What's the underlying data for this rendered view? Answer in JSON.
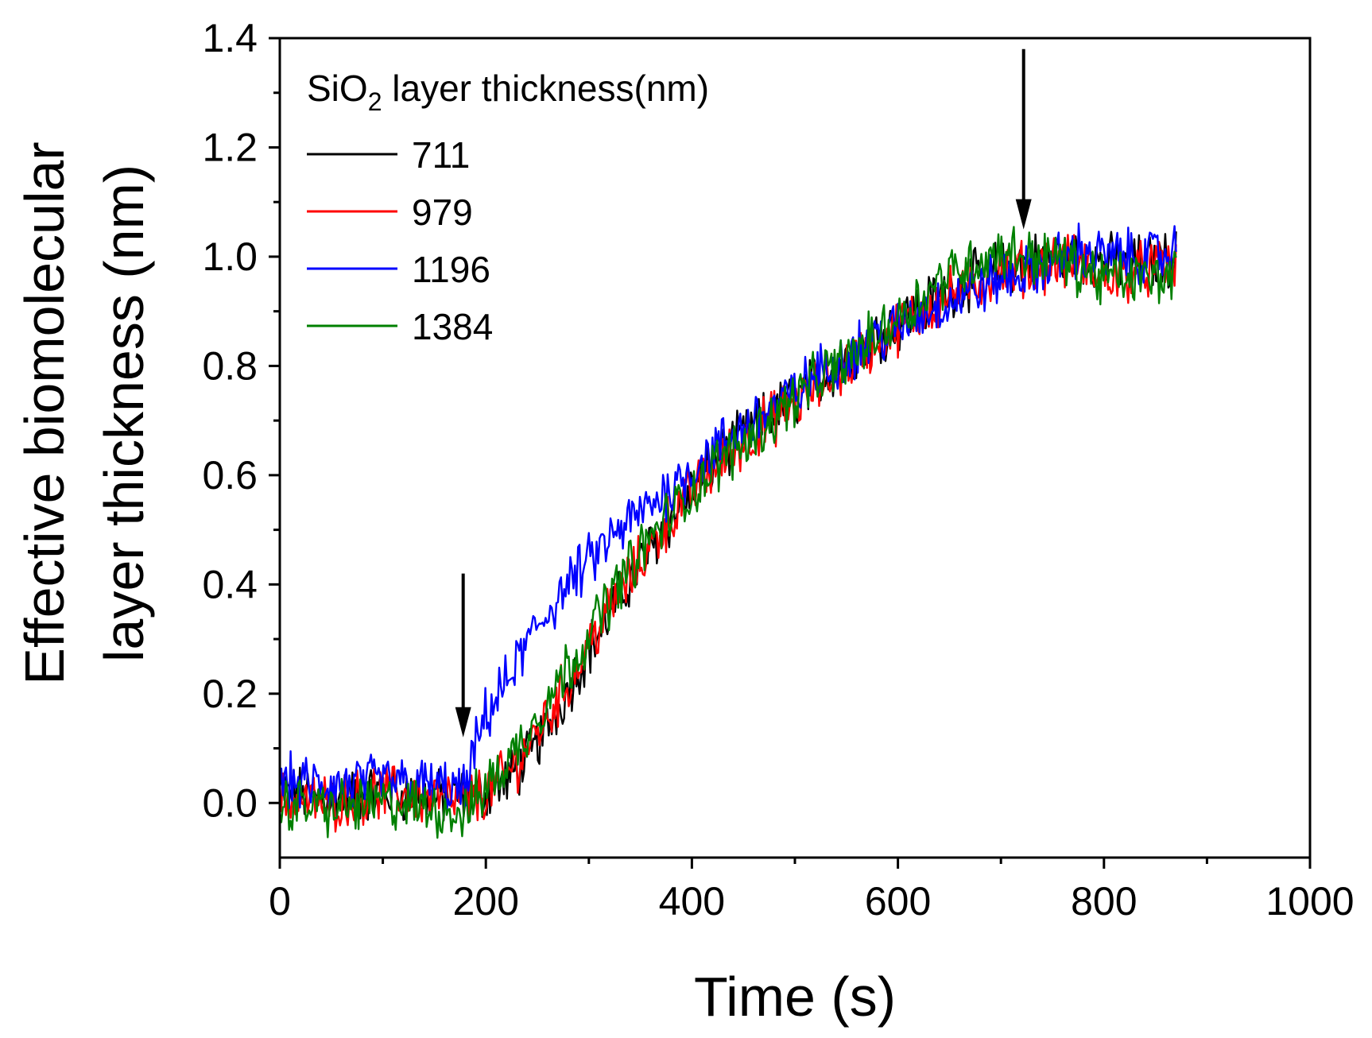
{
  "chart_data": {
    "type": "line",
    "title": "",
    "xlabel": "Time (s)",
    "ylabel_lines": [
      "Effective biomolecular",
      "layer thickness (nm)"
    ],
    "xlim": [
      0,
      1000
    ],
    "ylim": [
      -0.1,
      1.4
    ],
    "xticks": [
      0,
      200,
      400,
      600,
      800,
      1000
    ],
    "xtick_labels": [
      "0",
      "200",
      "400",
      "600",
      "800",
      "1000"
    ],
    "yticks": [
      0.0,
      0.2,
      0.4,
      0.6,
      0.8,
      1.0,
      1.2,
      1.4
    ],
    "ytick_labels": [
      "0.0",
      "0.2",
      "0.4",
      "0.6",
      "0.8",
      "1.0",
      "1.2",
      "1.4"
    ],
    "grid": false,
    "legend": {
      "position": "top-left",
      "title_main": "SiO",
      "title_sub": "2",
      "title_rest": " layer thickness(nm)"
    },
    "series": [
      {
        "name": "711",
        "color": "#000000",
        "x": [
          0,
          50,
          100,
          150,
          180,
          200,
          220,
          240,
          260,
          280,
          300,
          325,
          350,
          375,
          400,
          425,
          450,
          475,
          500,
          525,
          550,
          575,
          600,
          625,
          650,
          675,
          700,
          725,
          750,
          775,
          800,
          825,
          850,
          870
        ],
        "y": [
          0.02,
          0.01,
          0.02,
          0.01,
          0.01,
          0.02,
          0.04,
          0.08,
          0.14,
          0.21,
          0.28,
          0.36,
          0.44,
          0.51,
          0.57,
          0.63,
          0.67,
          0.71,
          0.74,
          0.78,
          0.81,
          0.85,
          0.88,
          0.91,
          0.94,
          0.96,
          0.98,
          0.99,
          1.0,
          1.0,
          0.99,
          0.99,
          0.99,
          1.0
        ]
      },
      {
        "name": "979",
        "color": "#ff0000",
        "x": [
          0,
          50,
          100,
          150,
          180,
          200,
          220,
          240,
          260,
          280,
          300,
          325,
          350,
          375,
          400,
          425,
          450,
          475,
          500,
          525,
          550,
          575,
          600,
          625,
          650,
          675,
          700,
          725,
          750,
          775,
          800,
          825,
          850,
          870
        ],
        "y": [
          0.01,
          0.0,
          0.02,
          0.01,
          0.0,
          0.02,
          0.05,
          0.1,
          0.16,
          0.22,
          0.29,
          0.37,
          0.44,
          0.51,
          0.57,
          0.62,
          0.66,
          0.7,
          0.73,
          0.77,
          0.8,
          0.84,
          0.87,
          0.9,
          0.93,
          0.95,
          0.97,
          0.98,
          0.99,
          0.99,
          0.96,
          0.97,
          0.98,
          0.98
        ]
      },
      {
        "name": "1196",
        "color": "#0000ff",
        "x": [
          0,
          50,
          100,
          150,
          180,
          190,
          200,
          220,
          240,
          260,
          280,
          300,
          325,
          350,
          375,
          400,
          425,
          450,
          475,
          500,
          525,
          550,
          575,
          600,
          625,
          650,
          675,
          700,
          725,
          750,
          775,
          800,
          825,
          850,
          870
        ],
        "y": [
          0.04,
          0.03,
          0.04,
          0.03,
          0.02,
          0.1,
          0.16,
          0.22,
          0.29,
          0.35,
          0.4,
          0.44,
          0.49,
          0.53,
          0.57,
          0.61,
          0.65,
          0.69,
          0.72,
          0.75,
          0.79,
          0.82,
          0.85,
          0.87,
          0.9,
          0.92,
          0.94,
          0.96,
          0.97,
          0.99,
          1.01,
          1.0,
          1.0,
          1.0,
          1.01
        ]
      },
      {
        "name": "1384",
        "color": "#008000",
        "x": [
          0,
          50,
          100,
          150,
          180,
          200,
          220,
          240,
          260,
          280,
          300,
          325,
          350,
          375,
          400,
          425,
          450,
          475,
          500,
          525,
          550,
          575,
          600,
          625,
          650,
          675,
          700,
          725,
          750,
          775,
          800,
          825,
          850,
          870
        ],
        "y": [
          0.0,
          -0.01,
          0.0,
          -0.01,
          -0.02,
          0.03,
          0.07,
          0.13,
          0.19,
          0.25,
          0.31,
          0.39,
          0.46,
          0.52,
          0.57,
          0.62,
          0.66,
          0.7,
          0.74,
          0.78,
          0.81,
          0.85,
          0.89,
          0.93,
          0.97,
          0.99,
          1.01,
          1.0,
          1.0,
          0.98,
          0.96,
          0.96,
          0.96,
          0.97
        ]
      }
    ],
    "annotations": [
      {
        "type": "arrow-down",
        "x": 178,
        "y_from": 0.42,
        "y_to": 0.12
      },
      {
        "type": "arrow-down",
        "x": 722,
        "y_from": 1.38,
        "y_to": 1.05
      }
    ]
  }
}
